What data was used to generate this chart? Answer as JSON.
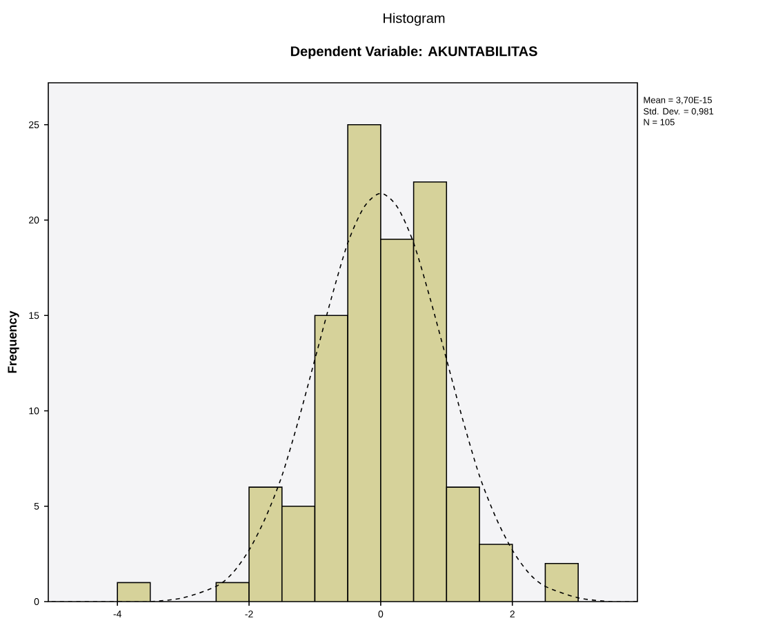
{
  "chart_data": {
    "type": "histogram",
    "title": "Histogram",
    "subtitle": "Dependent Variable: AKUNTABILITAS",
    "ylabel": "Frequency",
    "bins": [
      -4,
      -3.5,
      -3,
      -2.5,
      -2,
      -1.5,
      -1,
      -0.5,
      0,
      0.5,
      1,
      1.5,
      2,
      2.5,
      3
    ],
    "values": [
      1,
      0,
      0,
      1,
      6,
      5,
      15,
      25,
      19,
      22,
      6,
      3,
      0,
      2
    ],
    "color": "#d6d29a",
    "series": [
      {
        "type": "line",
        "color": "#000000",
        "line_style": "dashed",
        "x": [
          -5,
          -4,
          -3.5,
          -3,
          -2.5,
          -2.25,
          -2,
          -1.75,
          -1.5,
          -1.25,
          -1,
          -0.75,
          -0.5,
          -0.25,
          0,
          0.25,
          0.5,
          0.75,
          1,
          1.25,
          1.5,
          1.75,
          2,
          2.25,
          2.5,
          3,
          3.5,
          3.9
        ],
        "values": [
          0,
          0,
          0,
          0.2,
          0.8,
          1.5,
          2.7,
          4.4,
          6.6,
          9.5,
          12.7,
          15.9,
          18.8,
          20.7,
          21.4,
          20.7,
          18.8,
          15.9,
          12.7,
          9.5,
          6.6,
          4.4,
          2.7,
          1.5,
          0.8,
          0.2,
          0,
          0
        ]
      }
    ],
    "xlim": [
      -5.05,
      3.9
    ],
    "ylim": [
      0,
      27.2
    ],
    "xticks": [
      -4,
      -2,
      0,
      2
    ],
    "yticks": [
      0,
      5,
      10,
      15,
      20,
      25
    ],
    "annotations": [
      "Mean = 3,70E-15",
      "Std. Dev. = 0,981",
      "N = 105"
    ]
  }
}
